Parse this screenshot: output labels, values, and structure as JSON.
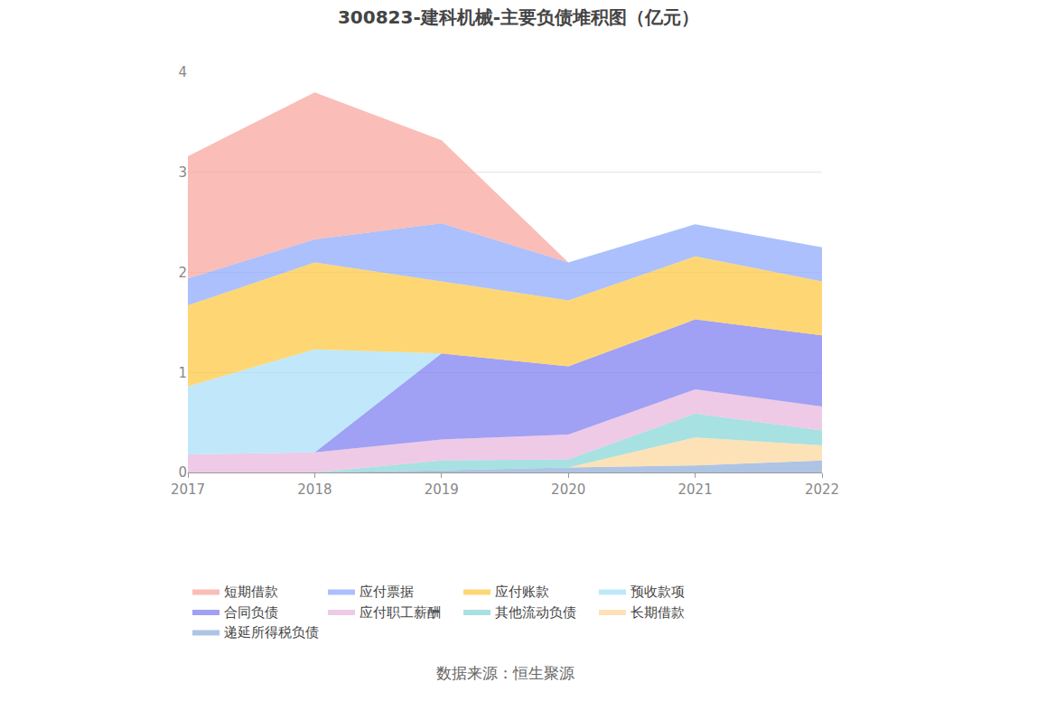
{
  "chart_data": {
    "type": "area",
    "stacked": true,
    "title": "300823-建科机械-主要负债堆积图（亿元）",
    "source": "数据来源：恒生聚源",
    "categories": [
      "2017",
      "2018",
      "2019",
      "2020",
      "2021",
      "2022"
    ],
    "series": [
      {
        "name": "短期借款",
        "color": "#f8a39b",
        "values": [
          1.22,
          1.47,
          0.83,
          0,
          0,
          0
        ]
      },
      {
        "name": "应付票据",
        "color": "#8aa8fb",
        "values": [
          0.27,
          0.23,
          0.58,
          0.38,
          0.32,
          0.34
        ]
      },
      {
        "name": "应付账款",
        "color": "#fdc73f",
        "values": [
          0.81,
          0.87,
          0.72,
          0.66,
          0.63,
          0.54
        ]
      },
      {
        "name": "预收款项",
        "color": "#a8dff8",
        "values": [
          0.68,
          1.03,
          0,
          0,
          0,
          0
        ]
      },
      {
        "name": "合同负债",
        "color": "#7b7cf0",
        "values": [
          0,
          0,
          0.86,
          0.68,
          0.7,
          0.71
        ]
      },
      {
        "name": "应付职工薪酬",
        "color": "#e8b5dc",
        "values": [
          0.18,
          0.2,
          0.21,
          0.25,
          0.24,
          0.24
        ]
      },
      {
        "name": "其他流动负债",
        "color": "#86d6d6",
        "values": [
          0,
          0,
          0.1,
          0.08,
          0.24,
          0.15
        ]
      },
      {
        "name": "长期借款",
        "color": "#fcd79b",
        "values": [
          0,
          0,
          0,
          0,
          0.28,
          0.15
        ]
      },
      {
        "name": "递延所得税负债",
        "color": "#8fadd9",
        "values": [
          0,
          0,
          0.02,
          0.05,
          0.07,
          0.12
        ]
      }
    ],
    "ylim": [
      0,
      4
    ],
    "yticks": [
      0,
      1,
      2,
      3,
      4
    ],
    "grid": true,
    "legend": "bottom"
  }
}
